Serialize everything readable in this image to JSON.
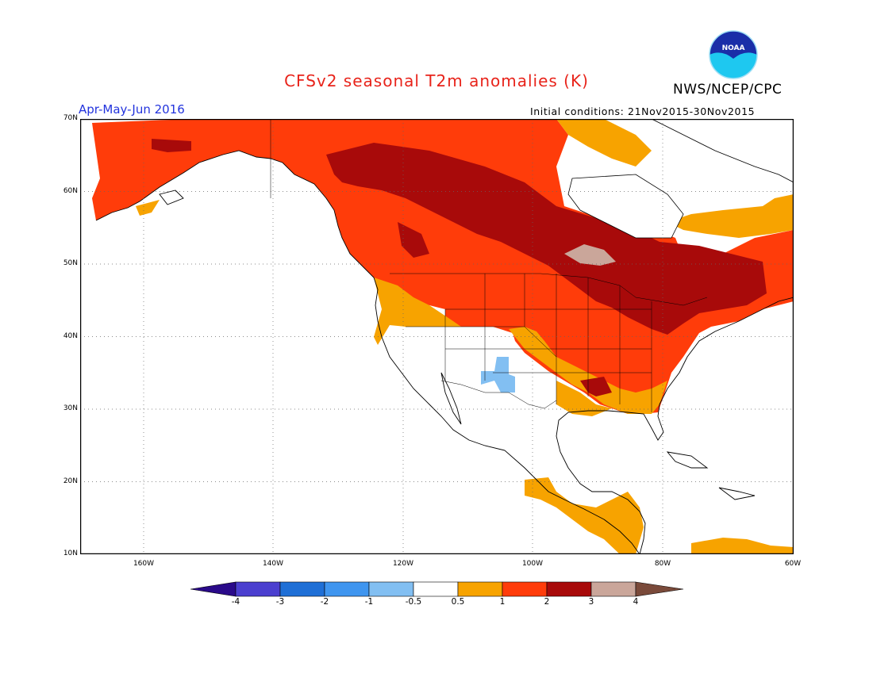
{
  "header": {
    "title": "CFSv2 seasonal T2m anomalies (K)",
    "org": "NWS/NCEP/CPC",
    "season": "Apr-May-Jun 2016",
    "initial_conditions": "Initial conditions: 21Nov2015-30Nov2015",
    "logo_text": "NOAA"
  },
  "map": {
    "lat_labels": [
      "70N",
      "60N",
      "50N",
      "40N",
      "30N",
      "20N",
      "10N"
    ],
    "lon_labels": [
      "160W",
      "140W",
      "120W",
      "100W",
      "80W",
      "60W"
    ]
  },
  "colorbar": {
    "labels": [
      "-4",
      "-3",
      "-2",
      "-1",
      "-0.5",
      "0.5",
      "1",
      "2",
      "3",
      "4"
    ],
    "colors": [
      "#2a0a8a",
      "#4b3fcf",
      "#1f6fd6",
      "#3f95ef",
      "#82bff2",
      "#ffffff",
      "#f7a300",
      "#ff3c0a",
      "#a80a0a",
      "#caa69a",
      "#7a4a3a"
    ]
  },
  "palette": {
    "orange": "#f7a300",
    "red": "#ff3c0a",
    "darkred": "#a80a0a",
    "tan": "#caa69a",
    "lightblue": "#82bff2"
  }
}
